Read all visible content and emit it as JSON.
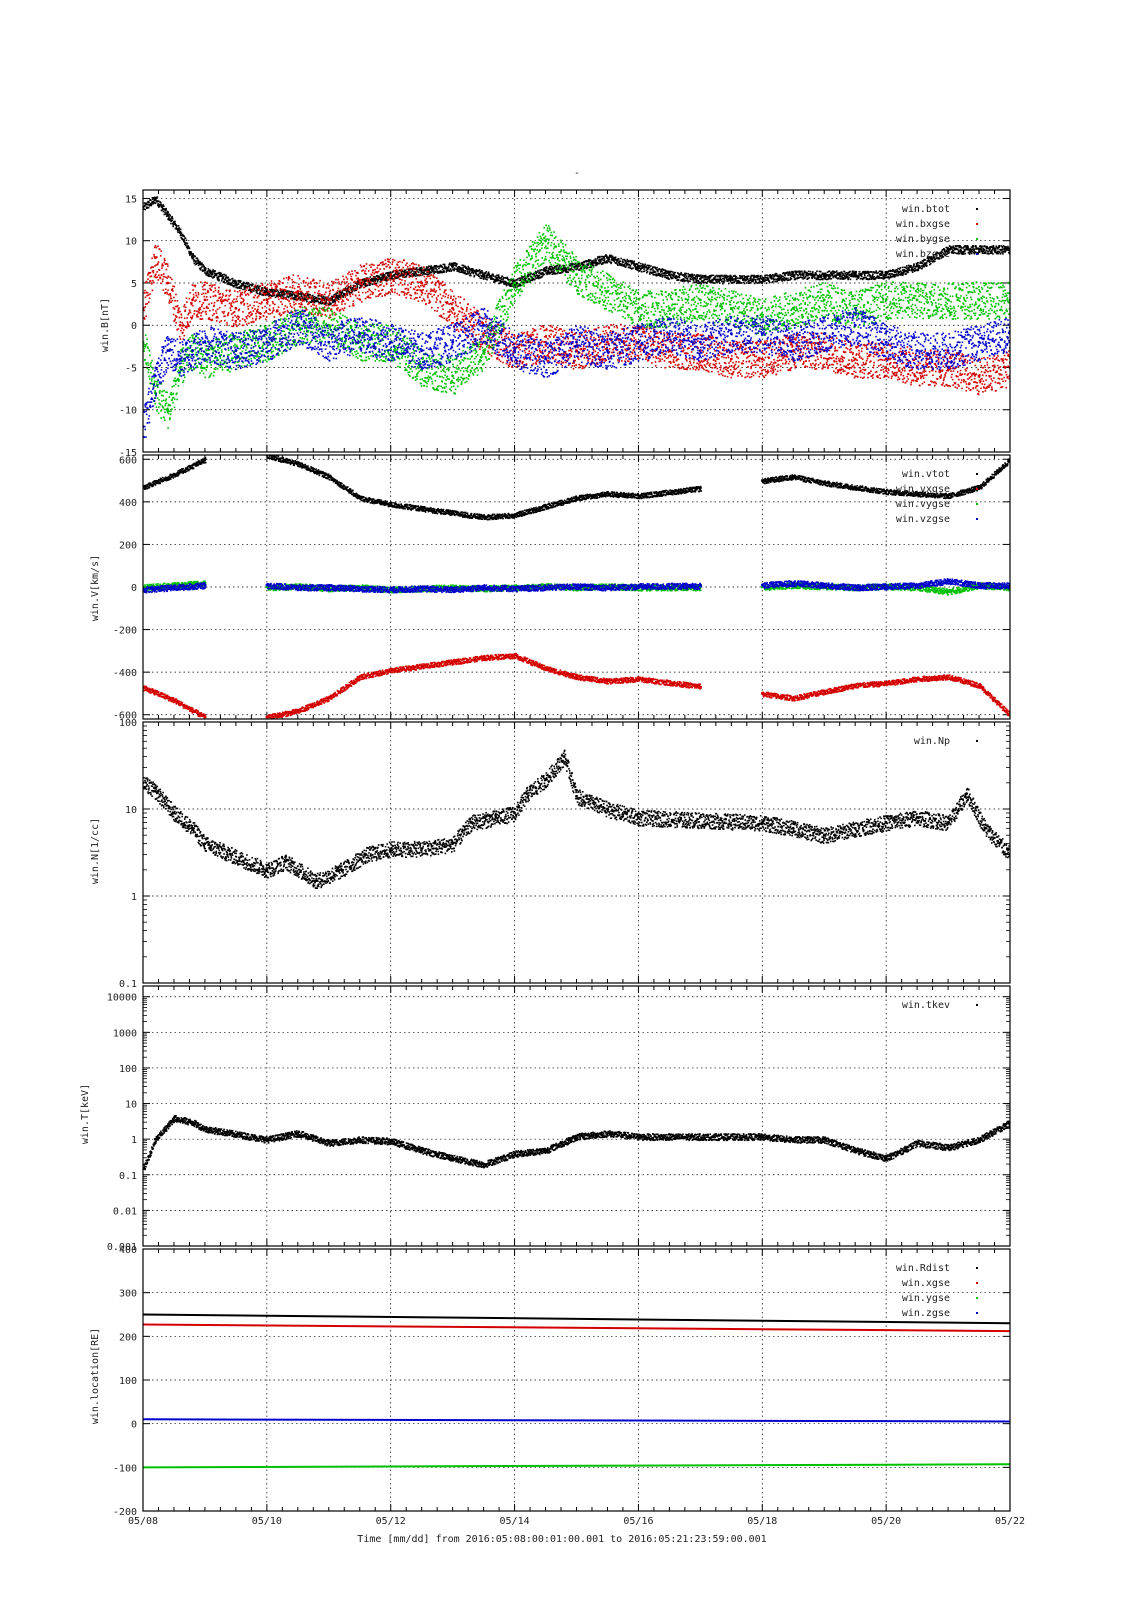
{
  "figure": {
    "title": "-",
    "time_label": "Time [mm/dd]  from 2016:05:08:00:01:00.001  to  2016:05:21:23:59:00.001",
    "x_tick_labels": [
      "05/08",
      "05/10",
      "05/12",
      "05/14",
      "05/16",
      "05/18",
      "05/20",
      "05/22"
    ]
  },
  "chart_data": [
    {
      "type": "scatter",
      "ylabel": "win.B[nT]",
      "ylim": [
        -15,
        16
      ],
      "y_ticks": [
        15,
        10,
        5,
        0,
        -5,
        -10,
        -15
      ],
      "x_unit": "days since 05/08",
      "xlim": [
        0,
        14
      ],
      "grid": true,
      "legend_placement": "top-right",
      "series": [
        {
          "name": "win.btot",
          "color": "#000000",
          "x": [
            0,
            0.2,
            0.4,
            0.6,
            0.8,
            1.0,
            1.5,
            2.0,
            2.5,
            3.0,
            3.5,
            4.0,
            4.5,
            5.0,
            5.5,
            6.0,
            6.5,
            7.0,
            7.5,
            8.0,
            8.5,
            9.0,
            9.5,
            10.0,
            10.5,
            11.0,
            11.5,
            12.0,
            12.5,
            13.0,
            13.5,
            14.0
          ],
          "values": [
            14,
            15,
            13,
            11,
            8,
            6.5,
            5,
            4,
            3.5,
            3,
            5,
            6,
            6.5,
            7,
            6,
            5,
            6.5,
            7,
            8,
            7,
            6,
            5.5,
            5.5,
            5.5,
            6,
            6,
            6,
            6,
            7,
            9,
            9,
            9
          ]
        },
        {
          "name": "win.bxgse",
          "color": "#d40000",
          "x": [
            0,
            0.2,
            0.4,
            0.6,
            0.8,
            1.0,
            1.5,
            2.0,
            2.5,
            3.0,
            3.5,
            4.0,
            4.5,
            5.0,
            5.5,
            6.0,
            6.5,
            7.0,
            7.5,
            8.0,
            8.5,
            9.0,
            9.5,
            10.0,
            10.5,
            11.0,
            11.5,
            12.0,
            12.5,
            13.0,
            13.5,
            14.0
          ],
          "values": [
            2,
            8,
            5,
            0,
            3,
            3,
            2,
            3,
            4,
            3,
            5,
            6,
            5,
            2,
            -1,
            -3,
            -2,
            -3,
            -2,
            -2,
            -3,
            -3,
            -4,
            -4,
            -3,
            -3,
            -4,
            -4,
            -5,
            -5,
            -6,
            -5
          ]
        },
        {
          "name": "win.bygse",
          "color": "#00c000",
          "x": [
            0,
            0.2,
            0.4,
            0.6,
            0.8,
            1.0,
            1.5,
            2.0,
            2.5,
            3.0,
            3.5,
            4.0,
            4.5,
            5.0,
            5.5,
            6.0,
            6.5,
            7.0,
            7.5,
            8.0,
            8.5,
            9.0,
            9.5,
            10.0,
            10.5,
            11.0,
            11.5,
            12.0,
            12.5,
            13.0,
            13.5,
            14.0
          ],
          "values": [
            -2,
            -8,
            -10,
            -5,
            -3,
            -4,
            -3,
            -2,
            0,
            0,
            -2,
            -2,
            -5,
            -6,
            -3,
            5,
            10,
            6,
            4,
            2,
            2,
            3,
            2,
            1,
            2,
            3,
            2,
            3,
            3,
            3,
            3,
            3
          ]
        },
        {
          "name": "win.bzgse",
          "color": "#0000cc",
          "x": [
            0,
            0.2,
            0.4,
            0.6,
            0.8,
            1.0,
            1.5,
            2.0,
            2.5,
            3.0,
            3.5,
            4.0,
            4.5,
            5.0,
            5.5,
            6.0,
            6.5,
            7.0,
            7.5,
            8.0,
            8.5,
            9.0,
            9.5,
            10.0,
            10.5,
            11.0,
            11.5,
            12.0,
            12.5,
            13.0,
            13.5,
            14.0
          ],
          "values": [
            -12,
            -6,
            -3,
            -4,
            -3,
            -2,
            -3,
            -2,
            0,
            -2,
            -1,
            -2,
            -3,
            -2,
            0,
            -3,
            -4,
            -2,
            -3,
            -2,
            -1,
            -2,
            -1,
            -1,
            -2,
            -1,
            0,
            -2,
            -3,
            -3,
            -2,
            -1
          ]
        }
      ]
    },
    {
      "type": "scatter",
      "ylabel": "win.V[km/s]",
      "ylim": [
        -620,
        620
      ],
      "y_ticks": [
        600,
        400,
        200,
        0,
        -200,
        -400,
        -600
      ],
      "x_unit": "days since 05/08",
      "xlim": [
        0,
        14
      ],
      "grid": true,
      "legend_placement": "top-right",
      "data_gaps": [
        [
          1,
          2
        ],
        [
          9,
          10
        ]
      ],
      "series": [
        {
          "name": "win.vtot",
          "color": "#000000",
          "x": [
            0,
            0.5,
            1.0,
            2.0,
            2.5,
            3.0,
            3.5,
            4.0,
            4.5,
            5.0,
            5.5,
            6.0,
            6.5,
            7.0,
            7.5,
            8.0,
            10.0,
            10.5,
            11.0,
            11.5,
            12.0,
            12.5,
            13.0,
            13.5,
            14.0
          ],
          "values": [
            470,
            530,
            600,
            620,
            580,
            520,
            420,
            390,
            370,
            350,
            330,
            340,
            380,
            420,
            440,
            430,
            500,
            520,
            490,
            470,
            450,
            440,
            430,
            470,
            600
          ]
        },
        {
          "name": "win.vxgse",
          "color": "#d40000",
          "x": [
            0,
            0.5,
            1.0,
            2.0,
            2.5,
            3.0,
            3.5,
            4.0,
            4.5,
            5.0,
            5.5,
            6.0,
            6.5,
            7.0,
            7.5,
            8.0,
            10.0,
            10.5,
            11.0,
            11.5,
            12.0,
            12.5,
            13.0,
            13.5,
            14.0
          ],
          "values": [
            -470,
            -530,
            -610,
            -610,
            -580,
            -520,
            -420,
            -390,
            -370,
            -350,
            -330,
            -320,
            -380,
            -420,
            -440,
            -430,
            -500,
            -520,
            -490,
            -460,
            -450,
            -430,
            -420,
            -460,
            -600
          ]
        },
        {
          "name": "win.vygse",
          "color": "#00c000",
          "x": [
            0,
            0.5,
            1.0,
            2.0,
            2.5,
            3.0,
            3.5,
            4.0,
            4.5,
            5.0,
            5.5,
            6.0,
            6.5,
            7.0,
            7.5,
            8.0,
            10.0,
            10.5,
            11.0,
            11.5,
            12.0,
            12.5,
            13.0,
            13.5,
            14.0
          ],
          "values": [
            0,
            10,
            20,
            0,
            5,
            -5,
            0,
            -10,
            -5,
            0,
            -5,
            0,
            5,
            0,
            5,
            0,
            0,
            10,
            5,
            0,
            5,
            0,
            -20,
            10,
            0
          ]
        },
        {
          "name": "win.vzgse",
          "color": "#0000cc",
          "x": [
            0,
            0.5,
            1.0,
            2.0,
            2.5,
            3.0,
            3.5,
            4.0,
            4.5,
            5.0,
            5.5,
            6.0,
            6.5,
            7.0,
            7.5,
            8.0,
            10.0,
            10.5,
            11.0,
            11.5,
            12.0,
            12.5,
            13.0,
            13.5,
            14.0
          ],
          "values": [
            -10,
            0,
            10,
            10,
            0,
            0,
            -5,
            -10,
            -5,
            -10,
            0,
            -5,
            0,
            5,
            0,
            5,
            10,
            20,
            10,
            0,
            5,
            10,
            30,
            10,
            10
          ]
        }
      ]
    },
    {
      "type": "scatter",
      "ylabel": "win.N[1/cc]",
      "y_scale": "log",
      "ylim": [
        0.1,
        100
      ],
      "y_ticks": [
        100,
        10,
        1,
        0.1
      ],
      "y_tick_labels": [
        "100",
        "10",
        "1",
        "0.1"
      ],
      "x_unit": "days since 05/08",
      "xlim": [
        0,
        14
      ],
      "grid": true,
      "legend_placement": "top-right",
      "series": [
        {
          "name": "win.Np",
          "color": "#000000",
          "x": [
            0,
            0.2,
            0.5,
            0.8,
            1.0,
            2.0,
            2.3,
            2.8,
            3.2,
            3.6,
            4.0,
            4.5,
            5.0,
            5.3,
            5.7,
            6.0,
            6.2,
            6.5,
            6.8,
            7.0,
            7.5,
            8.0,
            10.0,
            10.5,
            11.0,
            11.5,
            12.0,
            12.5,
            13.0,
            13.3,
            13.6,
            14.0
          ],
          "values": [
            20,
            16,
            9,
            6,
            4,
            2,
            2.5,
            1.5,
            2,
            3,
            3.5,
            3.5,
            4,
            7,
            8,
            9,
            15,
            22,
            40,
            14,
            10,
            8,
            7,
            6,
            5,
            6,
            7,
            8,
            7,
            15,
            6,
            3
          ]
        }
      ]
    },
    {
      "type": "scatter",
      "ylabel": "win.T[keV]",
      "y_scale": "log",
      "ylim": [
        0.001,
        20000
      ],
      "y_ticks": [
        10000,
        1000,
        100,
        10,
        1,
        0.1,
        0.01,
        0.001
      ],
      "y_tick_labels": [
        "10000",
        "1000",
        "100",
        "10",
        "1",
        "0.1",
        "0.01",
        "0.001"
      ],
      "x_unit": "days since 05/08",
      "xlim": [
        0,
        14
      ],
      "grid": true,
      "legend_placement": "top-right",
      "series": [
        {
          "name": "win.tkev",
          "color": "#000000",
          "x": [
            0,
            0.2,
            0.5,
            0.8,
            1.0,
            2.0,
            2.5,
            3.0,
            3.5,
            4.0,
            4.5,
            5.0,
            5.5,
            6.0,
            6.5,
            7.0,
            7.5,
            8.0,
            10.0,
            10.5,
            11.0,
            11.5,
            12.0,
            12.5,
            13.0,
            13.5,
            14.0
          ],
          "values": [
            0.15,
            1,
            4,
            3,
            2,
            1,
            1.5,
            0.8,
            1,
            0.9,
            0.5,
            0.3,
            0.2,
            0.4,
            0.5,
            1.2,
            1.5,
            1.2,
            1.2,
            1,
            1,
            0.5,
            0.3,
            0.8,
            0.6,
            1,
            3
          ]
        }
      ]
    },
    {
      "type": "line",
      "ylabel": "win.location[RE]",
      "ylim": [
        -200,
        400
      ],
      "y_ticks": [
        400,
        300,
        200,
        100,
        0,
        -100,
        -200
      ],
      "x_unit": "days since 05/08",
      "xlim": [
        0,
        14
      ],
      "grid": true,
      "legend_placement": "top-right",
      "series": [
        {
          "name": "win.Rdist",
          "color": "#000000",
          "x": [
            0,
            14
          ],
          "values": [
            250,
            230
          ]
        },
        {
          "name": "win.xgse",
          "color": "#d40000",
          "x": [
            0,
            14
          ],
          "values": [
            227,
            212
          ]
        },
        {
          "name": "win.ygse",
          "color": "#00c000",
          "x": [
            0,
            14
          ],
          "values": [
            -100,
            -93
          ]
        },
        {
          "name": "win.zgse",
          "color": "#0000cc",
          "x": [
            0,
            14
          ],
          "values": [
            10,
            5
          ]
        }
      ]
    }
  ]
}
